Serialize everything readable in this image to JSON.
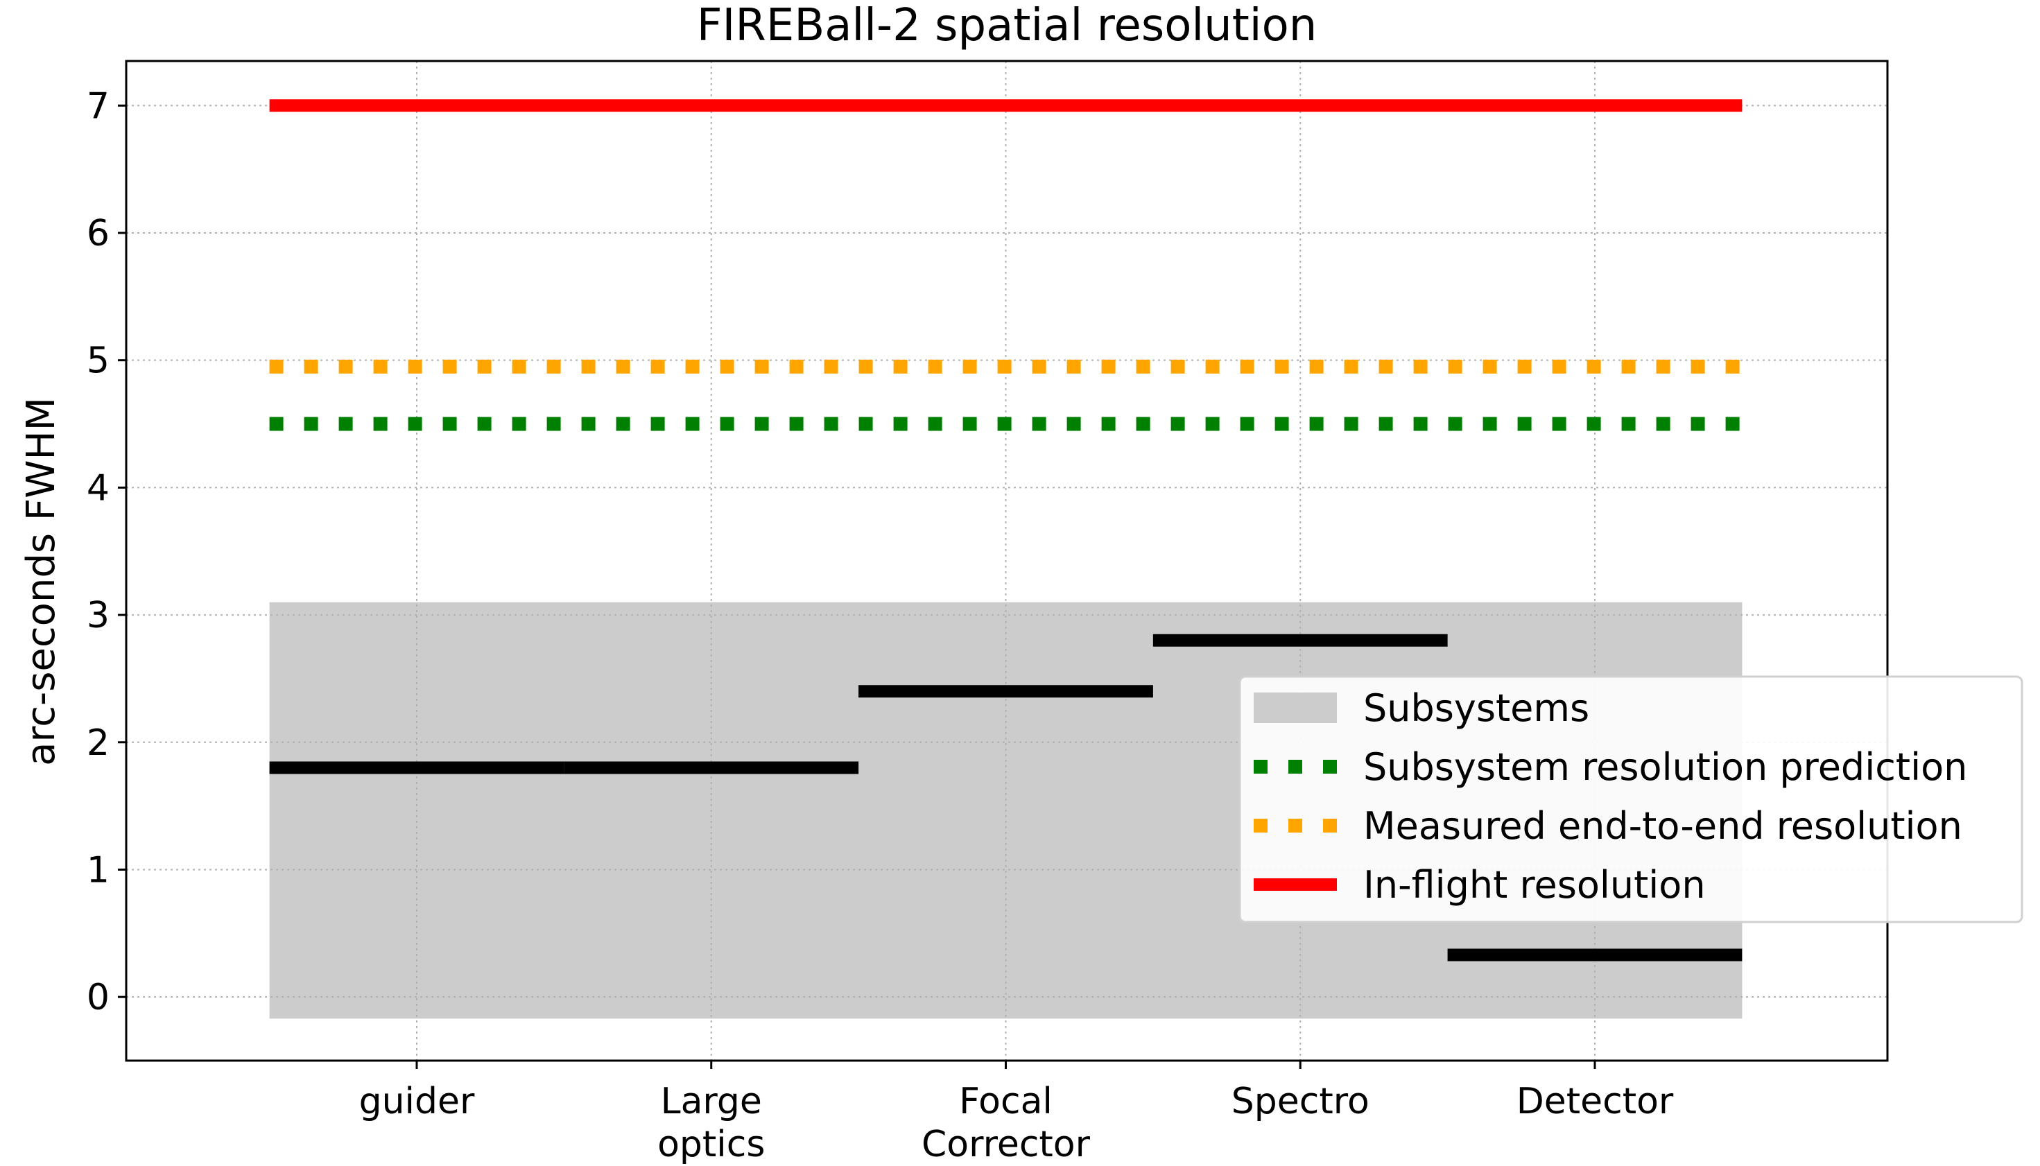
{
  "chart_data": {
    "type": "line",
    "title": "FIREBall-2 spatial resolution",
    "ylabel": "arc-seconds FWHM",
    "xlabel": "",
    "ylim": [
      -0.5,
      7.35
    ],
    "yticks": [
      0,
      1,
      2,
      3,
      4,
      5,
      6,
      7
    ],
    "categories": [
      "guider",
      "Large\noptics",
      "Focal\nCorrector",
      "Spectro",
      "Detector"
    ],
    "grid": true,
    "legend_position": "center-right",
    "subsystem_band": {
      "name": "Subsystems",
      "y_range": [
        -0.17,
        3.1
      ],
      "color": "#cccccc"
    },
    "subsystem_values": [
      {
        "category": "guider",
        "value": 1.8
      },
      {
        "category": "Large\noptics",
        "value": 1.8
      },
      {
        "category": "Focal\nCorrector",
        "value": 2.4
      },
      {
        "category": "Spectro",
        "value": 2.8
      },
      {
        "category": "Detector",
        "value": 0.33
      }
    ],
    "series": [
      {
        "name": "Subsystem resolution prediction",
        "value": 4.5,
        "style": "dotted",
        "color": "#008000"
      },
      {
        "name": "Measured end-to-end resolution",
        "value": 4.95,
        "style": "dotted",
        "color": "#ffa500"
      },
      {
        "name": "In-flight resolution",
        "value": 7.0,
        "style": "solid",
        "color": "#ff0000"
      }
    ],
    "subsystem_line_color": "#000000"
  }
}
